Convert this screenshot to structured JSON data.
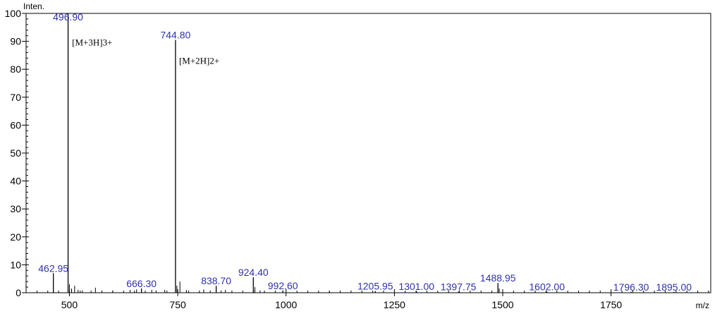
{
  "chart_data": {
    "type": "spectrum",
    "xlabel": "m/z",
    "ylabel": "Inten.",
    "xlim": [
      400,
      1980
    ],
    "ylim": [
      0,
      100
    ],
    "x_ticks": [
      500,
      750,
      1000,
      1250,
      1500,
      1750
    ],
    "y_ticks": [
      0,
      10,
      20,
      30,
      40,
      50,
      60,
      70,
      80,
      90,
      100
    ],
    "grid": false,
    "peaks": [
      {
        "mz": 462.95,
        "intensity": 7,
        "label": "462.95"
      },
      {
        "mz": 496.9,
        "intensity": 100,
        "label": "496.90"
      },
      {
        "mz": 666.3,
        "intensity": 1.5,
        "label": "666.30"
      },
      {
        "mz": 744.8,
        "intensity": 90.5,
        "label": "744.80"
      },
      {
        "mz": 838.7,
        "intensity": 2.5,
        "label": "838.70"
      },
      {
        "mz": 924.4,
        "intensity": 5.5,
        "label": "924.40"
      },
      {
        "mz": 992.6,
        "intensity": 0.8,
        "label": "992.60"
      },
      {
        "mz": 1205.95,
        "intensity": 0.6,
        "label": "1205.95"
      },
      {
        "mz": 1301.0,
        "intensity": 0.5,
        "label": "1301.00"
      },
      {
        "mz": 1397.75,
        "intensity": 0.4,
        "label": "1397.75"
      },
      {
        "mz": 1488.95,
        "intensity": 3.5,
        "label": "1488.95"
      },
      {
        "mz": 1602.0,
        "intensity": 0.4,
        "label": "1602.00"
      },
      {
        "mz": 1796.3,
        "intensity": 0.3,
        "label": "1796.30"
      },
      {
        "mz": 1895.0,
        "intensity": 0.3,
        "label": "1895.00"
      }
    ],
    "minor_peaks": [
      {
        "mz": 500,
        "intensity": 3
      },
      {
        "mz": 505,
        "intensity": 1.5
      },
      {
        "mz": 512,
        "intensity": 2.5
      },
      {
        "mz": 520,
        "intensity": 1
      },
      {
        "mz": 530,
        "intensity": 0.8
      },
      {
        "mz": 560,
        "intensity": 1.8
      },
      {
        "mz": 600,
        "intensity": 0.8
      },
      {
        "mz": 640,
        "intensity": 1
      },
      {
        "mz": 655,
        "intensity": 1.2
      },
      {
        "mz": 690,
        "intensity": 1
      },
      {
        "mz": 720,
        "intensity": 1
      },
      {
        "mz": 748,
        "intensity": 2.5
      },
      {
        "mz": 755,
        "intensity": 4
      },
      {
        "mz": 770,
        "intensity": 1
      },
      {
        "mz": 810,
        "intensity": 1.2
      },
      {
        "mz": 860,
        "intensity": 1
      },
      {
        "mz": 928,
        "intensity": 2
      },
      {
        "mz": 940,
        "intensity": 0.8
      },
      {
        "mz": 1100,
        "intensity": 0.5
      },
      {
        "mz": 1492,
        "intensity": 1.5
      }
    ],
    "annotations": [
      {
        "text": "[M+3H]3+",
        "mz": 506,
        "intensity": 88.5
      },
      {
        "text": "[M+2H]2+",
        "mz": 753,
        "intensity": 82
      }
    ]
  }
}
